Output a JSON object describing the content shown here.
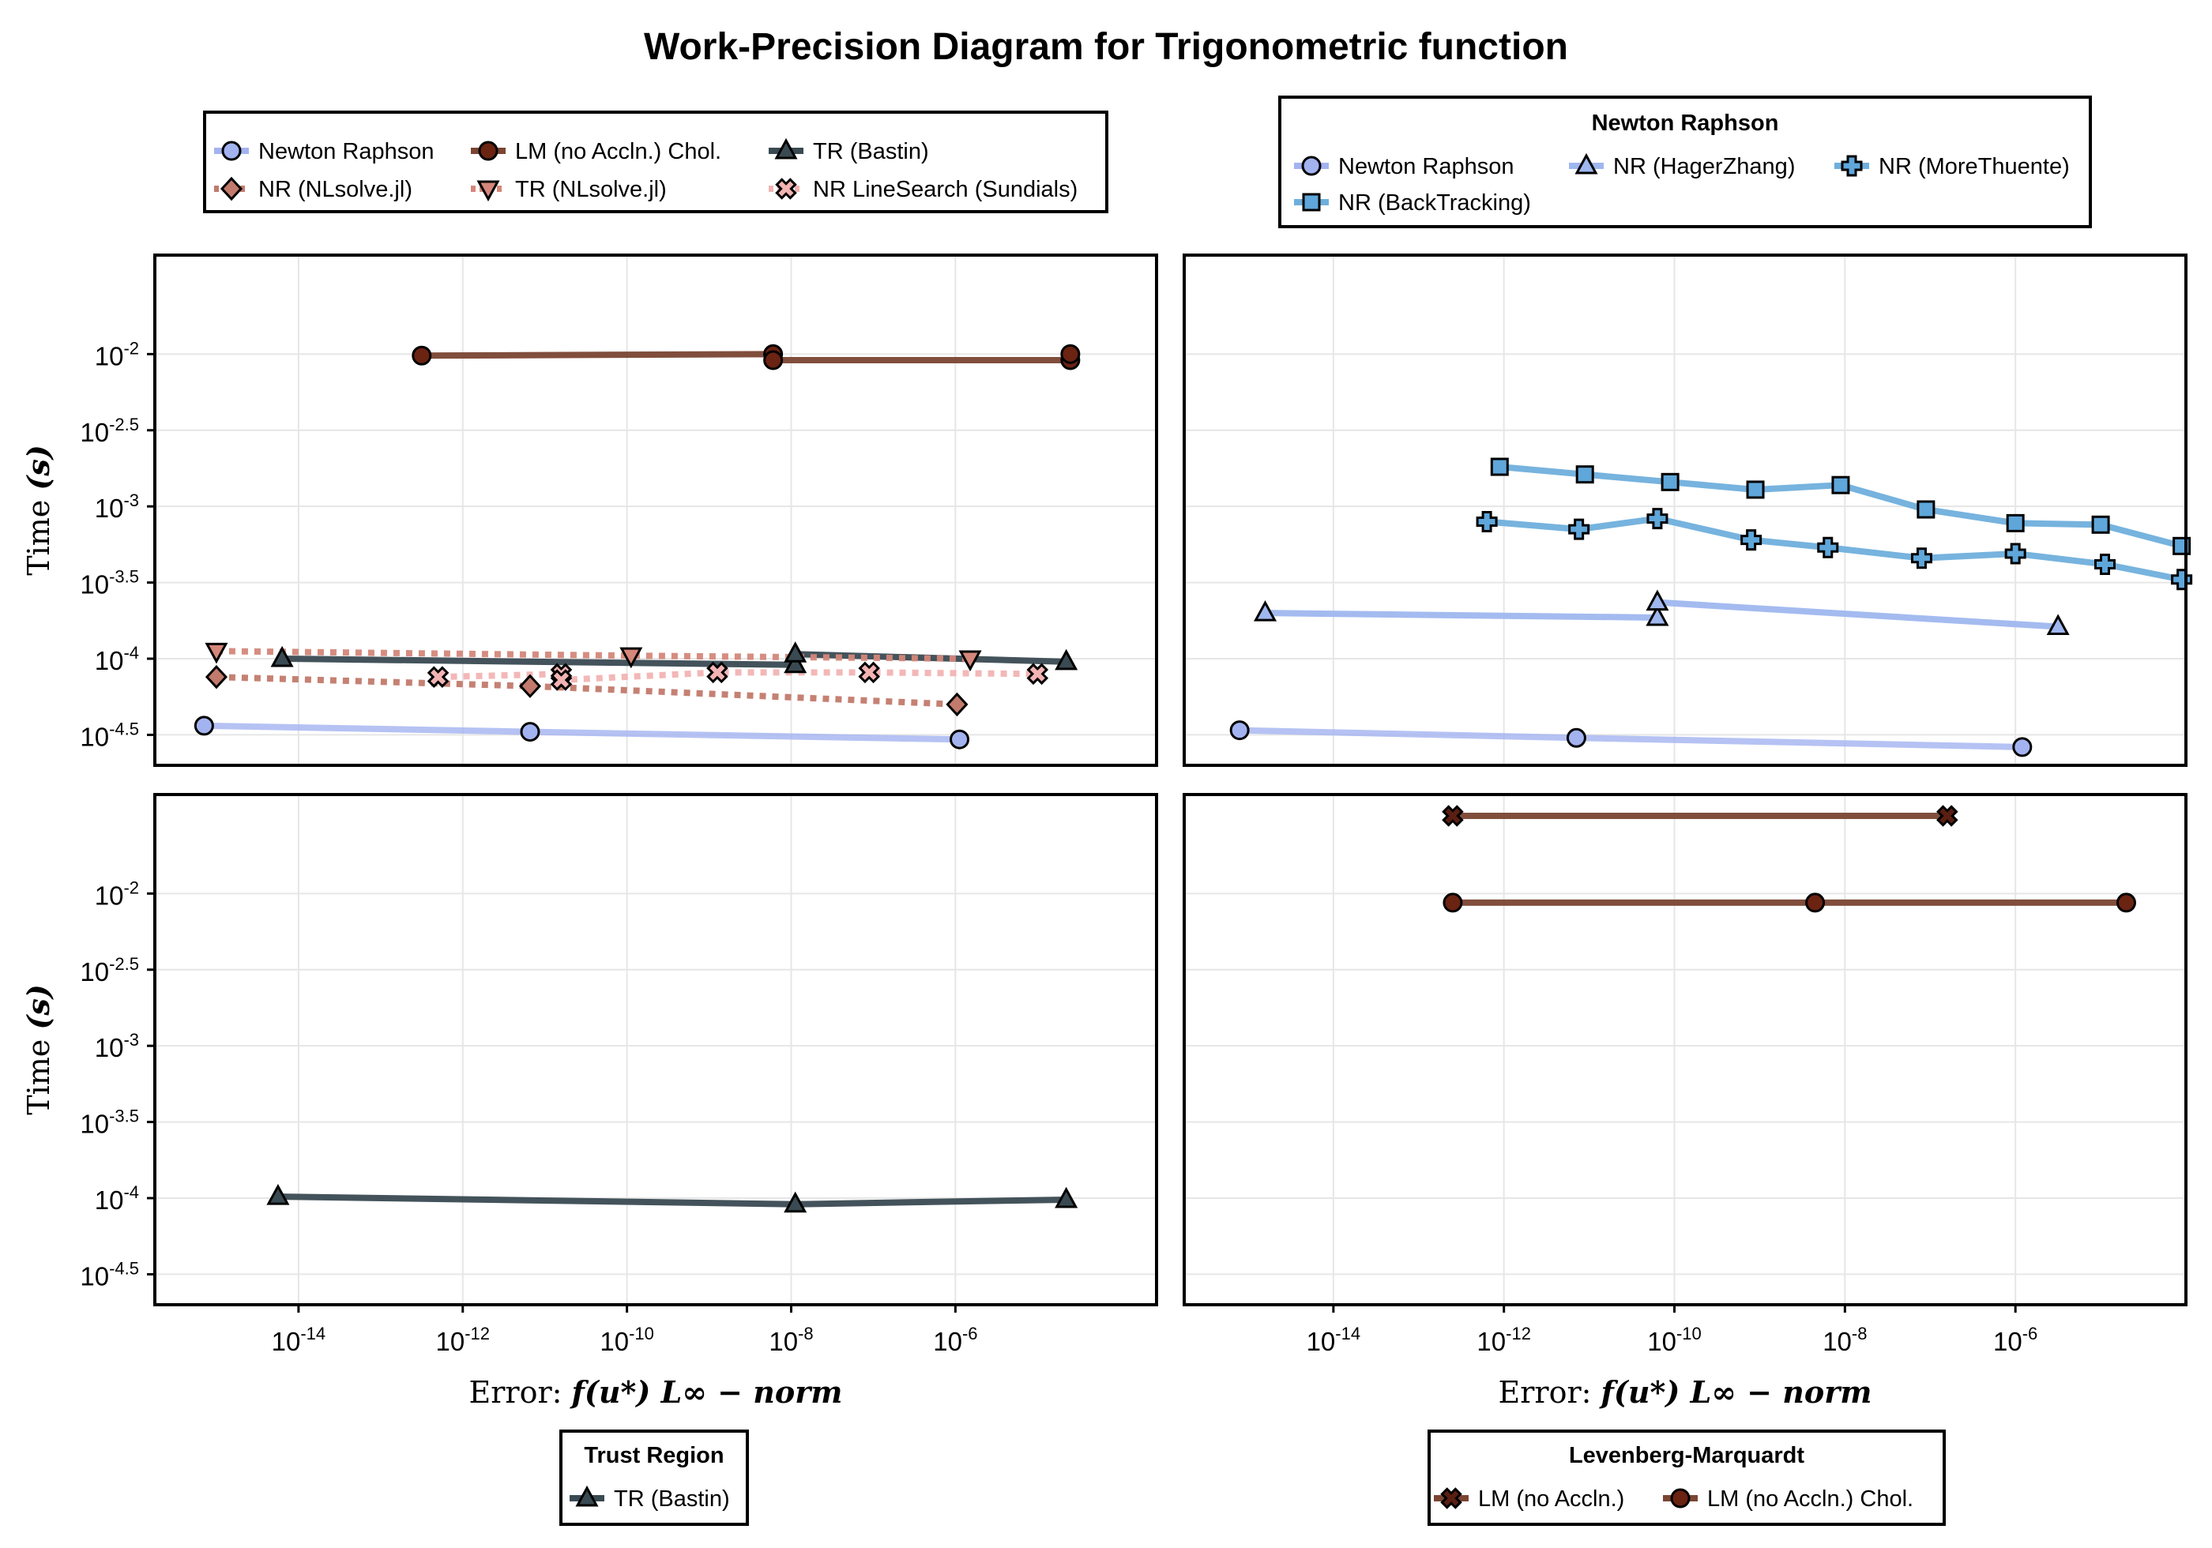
{
  "title": "Work-Precision Diagram for Trigonometric function",
  "axes": {
    "ylabel_text": "Time",
    "ylabel_unit": "(s)",
    "xlabel_prefix": "Error:",
    "xlabel_math": "f(u*)",
    "xlabel_norm": "L∞ − norm",
    "x_ticks": [
      {
        "base": "10",
        "exp": "-14"
      },
      {
        "base": "10",
        "exp": "-12"
      },
      {
        "base": "10",
        "exp": "-10"
      },
      {
        "base": "10",
        "exp": "-8"
      },
      {
        "base": "10",
        "exp": "-6"
      }
    ],
    "y_ticks": [
      {
        "base": "10",
        "exp": "-2"
      },
      {
        "base": "10",
        "exp": "-2.5"
      },
      {
        "base": "10",
        "exp": "-3"
      },
      {
        "base": "10",
        "exp": "-3.5"
      },
      {
        "base": "10",
        "exp": "-4"
      },
      {
        "base": "10",
        "exp": "-4.5"
      }
    ]
  },
  "legends": {
    "top_left": {
      "title": "",
      "entries": [
        "Newton Raphson",
        "LM (no Accln.) Chol.",
        "TR (Bastin)",
        "NR (NLsolve.jl)",
        "TR (NLsolve.jl)",
        "NR LineSearch (Sundials)"
      ]
    },
    "top_right": {
      "title": "Newton Raphson",
      "entries": [
        "Newton Raphson",
        "NR (HagerZhang)",
        "NR (MoreThuente)",
        "NR (BackTracking)"
      ]
    },
    "bottom_left": {
      "title": "Trust Region",
      "entries": [
        "TR (Bastin)"
      ]
    },
    "bottom_right": {
      "title": "Levenberg-Marquardt",
      "entries": [
        "LM (no Accln.)",
        "LM (no Accln.) Chol."
      ]
    }
  },
  "colors": {
    "newton_raphson": "#a3b3f0",
    "lm_chol": "#7a4533",
    "lm_chol_marker": "#6b2312",
    "tr_bastin": "#3a4a52",
    "nr_nlsolve": "#c27a6c",
    "tr_nlsolve": "#d4877a",
    "nr_linesearch": "#f2b3b3",
    "nr_blue": "#6fafdc",
    "nr_blue_marker": "#5fa6da",
    "nr_hager_marker": "#9fb7ef"
  },
  "chart_data": [
    {
      "type": "line",
      "panel": "top-left",
      "xscale": "log10",
      "yscale": "log10",
      "xlim_log10": [
        -15.75,
        -3.55
      ],
      "ylim_log10": [
        -4.7,
        -1.35
      ],
      "grid": true,
      "series": [
        {
          "name": "Newton Raphson",
          "color": "#a3b3f0",
          "marker": "circle",
          "style": "solid",
          "x_log10": [
            -15.15,
            -11.18,
            -5.95
          ],
          "y_log10": [
            -4.44,
            -4.48,
            -4.53
          ]
        },
        {
          "name": "LM (no Accln.) Chol.",
          "color": "#7a4533",
          "marker": "circle",
          "style": "solid",
          "x_log10": [
            -12.5,
            -8.22,
            -8.22,
            -4.6,
            -4.6
          ],
          "y_log10": [
            -2.01,
            -2.0,
            -2.04,
            -2.04,
            -2.0
          ]
        },
        {
          "name": "TR (Bastin)",
          "color": "#3a4a52",
          "marker": "triangle",
          "style": "solid",
          "x_log10": [
            -14.2,
            -7.95,
            -7.95,
            -4.65
          ],
          "y_log10": [
            -4.0,
            -4.04,
            -3.97,
            -4.02
          ]
        },
        {
          "name": "NR (NLsolve.jl)",
          "color": "#c27a6c",
          "marker": "diamond",
          "style": "dotted",
          "x_log10": [
            -15.0,
            -11.18,
            -5.98
          ],
          "y_log10": [
            -4.12,
            -4.18,
            -4.3
          ]
        },
        {
          "name": "TR (NLsolve.jl)",
          "color": "#d4877a",
          "marker": "triangle-down",
          "style": "dotted",
          "x_log10": [
            -15.0,
            -9.95,
            -5.82
          ],
          "y_log10": [
            -3.95,
            -3.98,
            -4.0
          ]
        },
        {
          "name": "NR LineSearch (Sundials)",
          "color": "#f2b3b3",
          "marker": "cross",
          "style": "dotted",
          "x_log10": [
            -12.3,
            -10.8,
            -10.8,
            -8.9,
            -7.05,
            -5.0
          ],
          "y_log10": [
            -4.12,
            -4.1,
            -4.14,
            -4.09,
            -4.09,
            -4.1
          ]
        }
      ]
    },
    {
      "type": "line",
      "panel": "top-right",
      "xscale": "log10",
      "yscale": "log10",
      "xlim_log10": [
        -15.75,
        -4.0
      ],
      "ylim_log10": [
        -4.7,
        -1.35
      ],
      "grid": true,
      "series": [
        {
          "name": "Newton Raphson",
          "color": "#a3b3f0",
          "marker": "circle",
          "style": "solid",
          "x_log10": [
            -15.1,
            -11.15,
            -5.92
          ],
          "y_log10": [
            -4.47,
            -4.52,
            -4.58
          ]
        },
        {
          "name": "NR (HagerZhang)",
          "color": "#9fb7ef",
          "marker": "triangle",
          "style": "solid",
          "x_log10": [
            -14.8,
            -10.2,
            -10.2,
            -5.5
          ],
          "y_log10": [
            -3.7,
            -3.73,
            -3.63,
            -3.79
          ]
        },
        {
          "name": "NR (MoreThuente)",
          "color": "#6fafdc",
          "marker": "plus",
          "style": "solid",
          "x_log10": [
            -12.2,
            -11.12,
            -10.2,
            -9.1,
            -8.2,
            -7.1,
            -6.0,
            -4.95,
            -4.05
          ],
          "y_log10": [
            -3.1,
            -3.15,
            -3.08,
            -3.22,
            -3.27,
            -3.34,
            -3.31,
            -3.38,
            -3.48
          ]
        },
        {
          "name": "NR (BackTracking)",
          "color": "#6fafdc",
          "marker": "square",
          "style": "solid",
          "x_log10": [
            -12.05,
            -11.05,
            -10.05,
            -9.05,
            -8.05,
            -7.05,
            -6.0,
            -5.0,
            -4.05
          ],
          "y_log10": [
            -2.74,
            -2.79,
            -2.84,
            -2.89,
            -2.86,
            -3.02,
            -3.11,
            -3.12,
            -3.26
          ]
        }
      ]
    },
    {
      "type": "line",
      "panel": "bottom-left",
      "xscale": "log10",
      "yscale": "log10",
      "xlim_log10": [
        -15.75,
        -3.55
      ],
      "ylim_log10": [
        -4.7,
        -1.35
      ],
      "grid": true,
      "series": [
        {
          "name": "TR (Bastin)",
          "color": "#3a4a52",
          "marker": "triangle",
          "style": "solid",
          "x_log10": [
            -14.25,
            -7.95,
            -4.65
          ],
          "y_log10": [
            -3.99,
            -4.04,
            -4.01
          ]
        }
      ]
    },
    {
      "type": "line",
      "panel": "bottom-right",
      "xscale": "log10",
      "yscale": "log10",
      "xlim_log10": [
        -15.75,
        -4.0
      ],
      "ylim_log10": [
        -4.7,
        -1.35
      ],
      "grid": true,
      "series": [
        {
          "name": "LM (no Accln.)",
          "color": "#7a4533",
          "marker": "x",
          "style": "solid",
          "x_log10": [
            -12.6,
            -6.8
          ],
          "y_log10": [
            -1.49,
            -1.49
          ]
        },
        {
          "name": "LM (no Accln.) Chol.",
          "color": "#7a4533",
          "marker": "circle",
          "style": "solid",
          "x_log10": [
            -12.6,
            -8.35,
            -4.7
          ],
          "y_log10": [
            -2.06,
            -2.06,
            -2.06
          ]
        }
      ]
    }
  ]
}
